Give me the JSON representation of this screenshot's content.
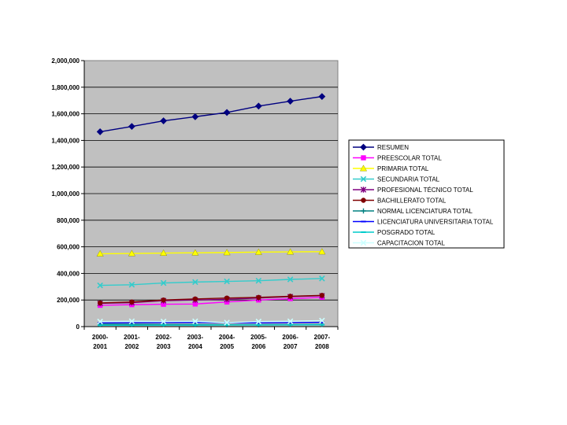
{
  "chart_data": {
    "type": "line",
    "title": "",
    "xlabel": "",
    "ylabel": "",
    "ylim": [
      0,
      2000000
    ],
    "yticks": [
      0,
      200000,
      400000,
      600000,
      800000,
      1000000,
      1200000,
      1400000,
      1600000,
      1800000,
      2000000
    ],
    "ytick_labels": [
      "0",
      "200,000",
      "400,000",
      "600,000",
      "800,000",
      "1,000,000",
      "1,200,000",
      "1,400,000",
      "1,600,000",
      "1,800,000",
      "2,000,000"
    ],
    "categories": [
      [
        "2000-",
        "2001"
      ],
      [
        "2001-",
        "2002"
      ],
      [
        "2002-",
        "2003"
      ],
      [
        "2003-",
        "2004"
      ],
      [
        "2004-",
        "2005"
      ],
      [
        "2005-",
        "2006"
      ],
      [
        "2006-",
        "2007"
      ],
      [
        "2007-",
        "2008"
      ]
    ],
    "grid": true,
    "plot_background": "#c0c0c0",
    "legend_position": "right",
    "series": [
      {
        "name": "RESUMEN",
        "color": "#000080",
        "marker": "diamond",
        "values": [
          1465000,
          1505000,
          1547000,
          1578000,
          1610000,
          1658000,
          1695000,
          1730000
        ]
      },
      {
        "name": "PREESCOLAR TOTAL",
        "color": "#ff00ff",
        "marker": "square",
        "values": [
          160000,
          165000,
          168000,
          170000,
          185000,
          200000,
          210000,
          220000
        ]
      },
      {
        "name": "PRIMARIA TOTAL",
        "color": "#ffff00",
        "marker": "triangle",
        "values": [
          548000,
          550000,
          553000,
          555000,
          557000,
          560000,
          562000,
          563000
        ]
      },
      {
        "name": "SECUNDARIA TOTAL",
        "color": "#33cccc",
        "marker": "x",
        "values": [
          310000,
          315000,
          328000,
          335000,
          340000,
          345000,
          355000,
          362000
        ]
      },
      {
        "name": "PROFESIONAL TÉCNICO TOTAL",
        "color": "#800080",
        "marker": "asterisk",
        "values": [
          175000,
          180000,
          195000,
          200000,
          205000,
          215000,
          225000,
          232000
        ]
      },
      {
        "name": "BACHILLERATO TOTAL",
        "color": "#800000",
        "marker": "circle",
        "values": [
          178000,
          185000,
          200000,
          208000,
          215000,
          220000,
          228000,
          235000
        ]
      },
      {
        "name": "NORMAL LICENCIATURA TOTAL",
        "color": "#008080",
        "marker": "plus",
        "values": [
          18000,
          17000,
          16000,
          15000,
          14000,
          14000,
          15000,
          16000
        ]
      },
      {
        "name": "LICENCIATURA UNIVERSITARIA TOTAL",
        "color": "#0000ff",
        "marker": "dash",
        "values": [
          28000,
          29000,
          30000,
          31000,
          30000,
          28000,
          30000,
          32000
        ]
      },
      {
        "name": "POSGRADO TOTAL",
        "color": "#00cccc",
        "marker": "dash",
        "values": [
          10000,
          10000,
          11000,
          11000,
          12000,
          12000,
          13000,
          14000
        ]
      },
      {
        "name": "CAPACITACION TOTAL",
        "color": "#ccffff",
        "marker": "x",
        "values": [
          38000,
          40000,
          38000,
          40000,
          30000,
          38000,
          40000,
          45000
        ]
      }
    ]
  }
}
